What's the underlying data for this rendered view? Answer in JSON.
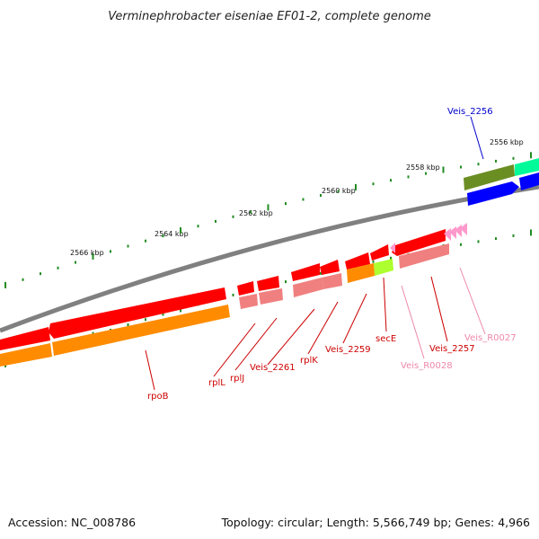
{
  "title": "Verminephrobacter eiseniae EF01-2, complete genome",
  "footer": {
    "accession": "Accession: NC_008786",
    "summary": "Topology: circular; Length: 5,566,749 bp; Genes: 4,966"
  },
  "ticks": [
    "2556 kbp",
    "2558 kbp",
    "2560 kbp",
    "2562 kbp",
    "2564 kbp",
    "2566 kbp"
  ],
  "gene_labels": [
    {
      "id": "Veis_2256",
      "text": "Veis_2256",
      "color": "#0000cc"
    },
    {
      "id": "secE",
      "text": "secE",
      "color": "#cc0000"
    },
    {
      "id": "Veis_2257",
      "text": "Veis_2257",
      "color": "#cc0000"
    },
    {
      "id": "Veis_R0027",
      "text": "Veis_R0027",
      "color": "#ee88aa"
    },
    {
      "id": "Veis_R0028",
      "text": "Veis_R0028",
      "color": "#ee88aa"
    },
    {
      "id": "Veis_2259",
      "text": "Veis_2259",
      "color": "#cc0000"
    },
    {
      "id": "rplK",
      "text": "rplK",
      "color": "#cc0000"
    },
    {
      "id": "Veis_2261",
      "text": "Veis_2261",
      "color": "#cc0000"
    },
    {
      "id": "rplJ",
      "text": "rplJ",
      "color": "#cc0000"
    },
    {
      "id": "rplL",
      "text": "rplL",
      "color": "#cc0000"
    },
    {
      "id": "rpoB",
      "text": "rpoB",
      "color": "#cc0000"
    }
  ],
  "colors": {
    "backbone": "#808080",
    "cds": "#ff0000",
    "cds_light": "#f08080",
    "orange": "#ff8c00",
    "lime": "#adff2f",
    "blue": "#0000ff",
    "olive": "#6b8e23",
    "teal": "#00fa9a",
    "rna": "#ff99cc",
    "tick": "#228b22"
  }
}
